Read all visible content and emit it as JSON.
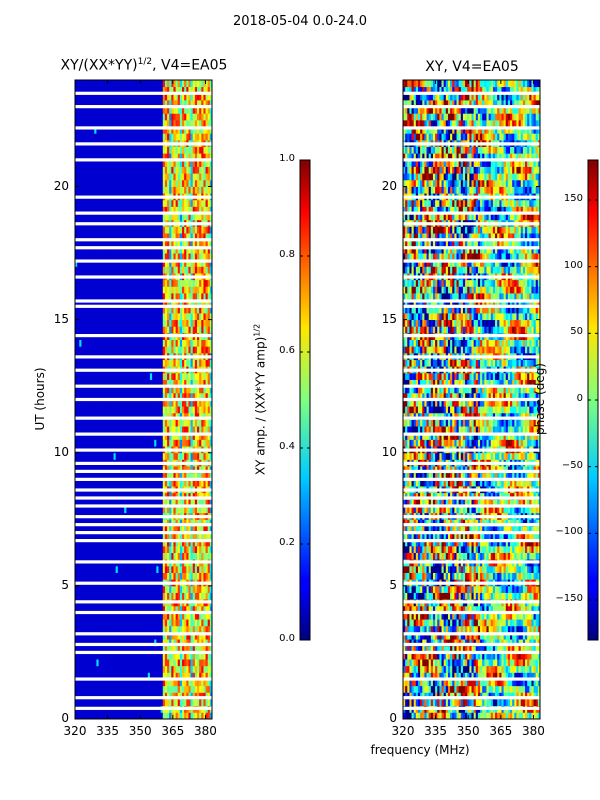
{
  "figure": {
    "suptitle": "2018-05-04 0.0-24.0",
    "xlabel": "frequency (MHz)",
    "ylabel": "UT (hours)"
  },
  "panels": [
    {
      "title_main": "XY/(XX*YY)",
      "title_sup": "1/2",
      "title_tail": ", V4=EA05"
    },
    {
      "title": "XY, V4=EA05"
    }
  ],
  "colorbars": [
    {
      "label_main": "XY amp. / (XX*YY amp)",
      "label_sup": "1/2",
      "ticks": [
        "0.0",
        "0.2",
        "0.4",
        "0.6",
        "0.8",
        "1.0"
      ]
    },
    {
      "label": "phase (deg)",
      "ticks": [
        "−150",
        "−100",
        "−50",
        "0",
        "50",
        "100",
        "150"
      ]
    }
  ],
  "chart_data": [
    {
      "type": "heatmap",
      "title": "XY/(XX*YY)^1/2, V4=EA05",
      "xlabel": "frequency (MHz)",
      "ylabel": "UT (hours)",
      "xlim": [
        320,
        383
      ],
      "ylim": [
        0,
        24
      ],
      "xticks": [
        320,
        335,
        350,
        365,
        380
      ],
      "yticks": [
        0,
        5,
        10,
        15,
        20
      ],
      "colorbar": {
        "label": "XY amp. / (XX*YY amp)^1/2",
        "range": [
          0.0,
          1.0
        ],
        "colormap": "jet"
      },
      "high_amplitude_channels_MHz": [
        362,
        366,
        371,
        376,
        380
      ],
      "flagged_ut_hours": [
        0.4,
        0.8,
        1.5,
        2.5,
        2.8,
        3.2,
        4.0,
        4.4,
        5.1,
        5.9,
        6.7,
        7.0,
        7.3,
        7.6,
        8.0,
        8.3,
        8.6,
        9.0,
        9.3,
        9.6,
        10.1,
        10.7,
        11.3,
        12.0,
        12.5,
        13.1,
        13.6,
        14.4,
        15.5,
        15.7,
        16.6,
        17.2,
        17.7,
        18.0,
        18.6,
        19.0,
        19.6,
        21.0,
        21.6,
        22.2,
        23.0,
        23.5
      ]
    },
    {
      "type": "heatmap",
      "title": "XY, V4=EA05",
      "xlabel": "frequency (MHz)",
      "ylabel": "UT (hours)",
      "xlim": [
        320,
        383
      ],
      "ylim": [
        0,
        24
      ],
      "xticks": [
        320,
        335,
        350,
        365,
        380
      ],
      "yticks": [
        0,
        5,
        10,
        15,
        20
      ],
      "colorbar": {
        "label": "phase (deg)",
        "range": [
          -180,
          180
        ],
        "colormap": "jet",
        "ticks": [
          -150,
          -100,
          -50,
          0,
          50,
          100,
          150
        ]
      }
    }
  ]
}
